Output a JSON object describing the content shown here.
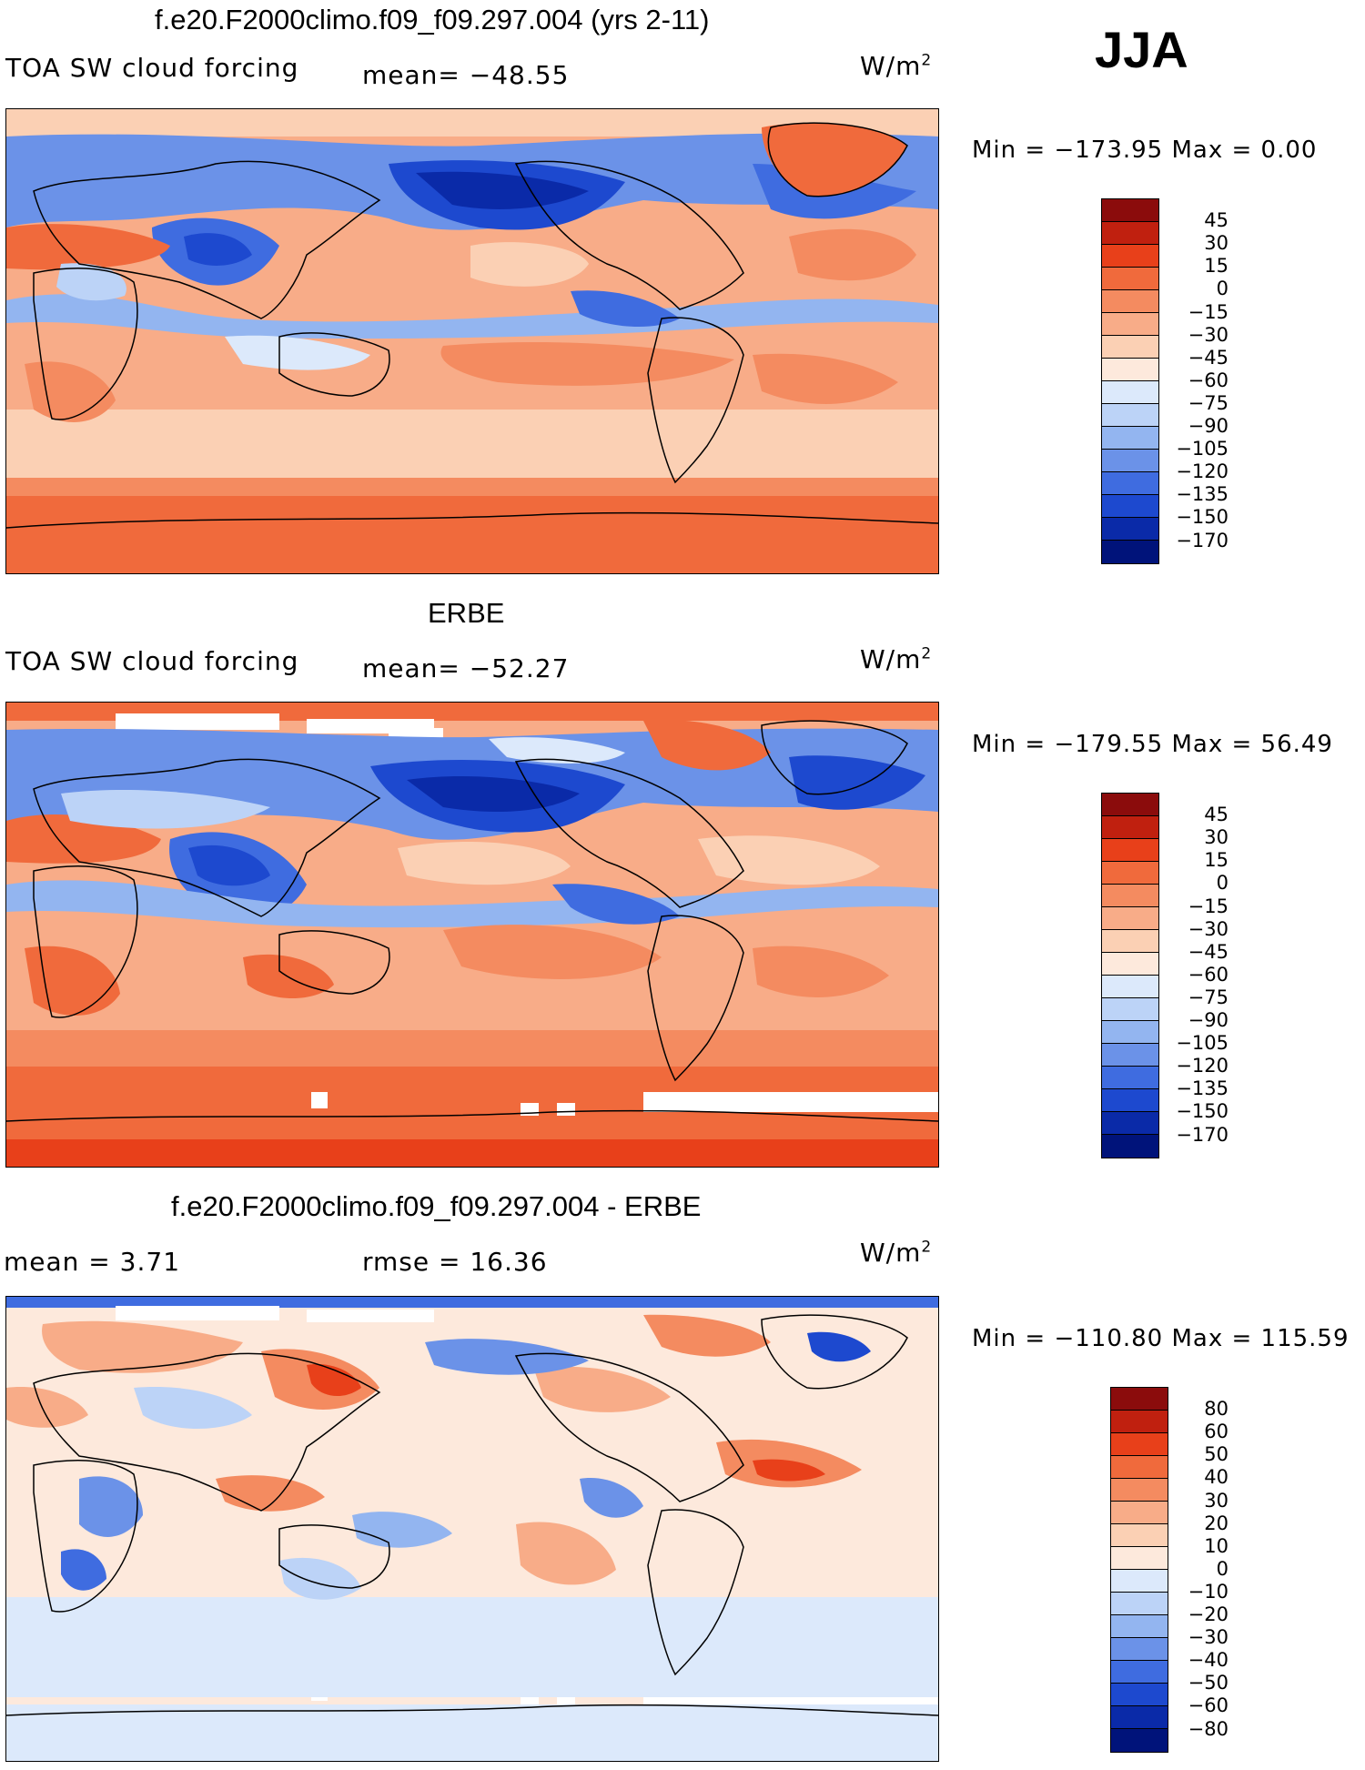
{
  "season": "JJA",
  "units_base": "W/m",
  "units_exp": "2",
  "panels": [
    {
      "title": "f.e20.F2000climo.f09_f09.297.004 (yrs 2-11)",
      "left_label": "TOA SW cloud forcing",
      "mid_label": "mean=  −48.55",
      "minmax": "Min  =  −173.95  Max  =     0.00",
      "levels": [
        "45",
        "30",
        "15",
        "0",
        "−15",
        "−30",
        "−45",
        "−60",
        "−75",
        "−90",
        "−105",
        "−120",
        "−135",
        "−150",
        "−170"
      ],
      "colors": [
        "#8b0c0c",
        "#c0200f",
        "#e8401a",
        "#f06a3c",
        "#f48b60",
        "#f8ac88",
        "#fbd0b4",
        "#fde9dc",
        "#dce9fb",
        "#bcd3f7",
        "#93b5f0",
        "#6b92e8",
        "#3f6ce0",
        "#1d49cf",
        "#0a2aa8",
        "#00137a"
      ]
    },
    {
      "title": "ERBE",
      "left_label": "TOA SW cloud forcing",
      "mid_label": "mean=  −52.27",
      "minmax": "Min  =  −179.55  Max  =    56.49",
      "levels": [
        "45",
        "30",
        "15",
        "0",
        "−15",
        "−30",
        "−45",
        "−60",
        "−75",
        "−90",
        "−105",
        "−120",
        "−135",
        "−150",
        "−170"
      ],
      "colors": [
        "#8b0c0c",
        "#c0200f",
        "#e8401a",
        "#f06a3c",
        "#f48b60",
        "#f8ac88",
        "#fbd0b4",
        "#fde9dc",
        "#dce9fb",
        "#bcd3f7",
        "#93b5f0",
        "#6b92e8",
        "#3f6ce0",
        "#1d49cf",
        "#0a2aa8",
        "#00137a"
      ]
    },
    {
      "title": "f.e20.F2000climo.f09_f09.297.004 - ERBE",
      "left_label": "mean  =     3.71",
      "mid_label": "rmse  =    16.36",
      "minmax": "Min  =  −110.80  Max  =  115.59",
      "levels": [
        "80",
        "60",
        "50",
        "40",
        "30",
        "20",
        "10",
        "0",
        "−10",
        "−20",
        "−30",
        "−40",
        "−50",
        "−60",
        "−80"
      ],
      "colors": [
        "#8b0c0c",
        "#c0200f",
        "#e8401a",
        "#f06a3c",
        "#f48b60",
        "#f8ac88",
        "#fbd0b4",
        "#fde9dc",
        "#dce9fb",
        "#bcd3f7",
        "#93b5f0",
        "#6b92e8",
        "#3f6ce0",
        "#1d49cf",
        "#0a2aa8",
        "#00137a"
      ]
    }
  ]
}
